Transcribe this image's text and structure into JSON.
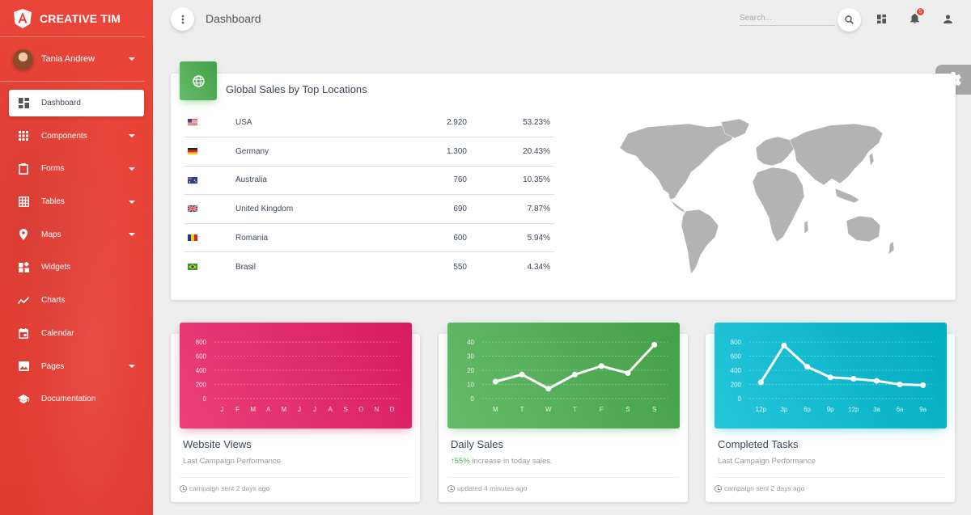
{
  "brand": {
    "name": "CREATIVE TIM"
  },
  "user": {
    "name": "Tania Andrew"
  },
  "sidebar": {
    "items": [
      {
        "label": "Dashboard"
      },
      {
        "label": "Components"
      },
      {
        "label": "Forms"
      },
      {
        "label": "Tables"
      },
      {
        "label": "Maps"
      },
      {
        "label": "Widgets"
      },
      {
        "label": "Charts"
      },
      {
        "label": "Calendar"
      },
      {
        "label": "Pages"
      },
      {
        "label": "Documentation"
      }
    ]
  },
  "header": {
    "title": "Dashboard",
    "search_placeholder": "Search...",
    "notification_count": "5"
  },
  "global_sales": {
    "title": "Global Sales by Top Locations",
    "rows": [
      {
        "country": "USA",
        "sales": "2.920",
        "percent": "53.23%"
      },
      {
        "country": "Germany",
        "sales": "1.300",
        "percent": "20.43%"
      },
      {
        "country": "Australia",
        "sales": "760",
        "percent": "10.35%"
      },
      {
        "country": "United Kingdom",
        "sales": "690",
        "percent": "7.87%"
      },
      {
        "country": "Romania",
        "sales": "600",
        "percent": "5.94%"
      },
      {
        "country": "Brasil",
        "sales": "550",
        "percent": "4.34%"
      }
    ]
  },
  "cards": [
    {
      "title": "Website Views",
      "subtitle": "Last Campaign Performance",
      "footer": "campaign sent 2 days ago"
    },
    {
      "title": "Daily Sales",
      "subtitle_highlight": "55%",
      "subtitle": " increase in today sales.",
      "footer": "updated 4 minutes ago"
    },
    {
      "title": "Completed Tasks",
      "subtitle": "Last Campaign Performance",
      "footer": "campaign sent 2 days ago"
    }
  ],
  "colors": {
    "sidebar": "#e53935",
    "green": "#4caf50",
    "pink": "#e91e63",
    "cyan": "#00bcd4"
  },
  "chart_data": [
    {
      "type": "bar",
      "title": "",
      "categories": [
        "J",
        "F",
        "M",
        "A",
        "M",
        "J",
        "J",
        "A",
        "S",
        "O",
        "N",
        "D"
      ],
      "values": [
        0,
        0,
        0,
        0,
        0,
        0,
        0,
        0,
        0,
        0,
        0,
        0
      ],
      "ylim": [
        0,
        800
      ],
      "yticks": [
        0,
        200,
        400,
        600,
        800
      ],
      "grid": true
    },
    {
      "type": "line",
      "title": "",
      "categories": [
        "M",
        "T",
        "W",
        "T",
        "F",
        "S",
        "S"
      ],
      "values": [
        12,
        17,
        7,
        17,
        23,
        18,
        38
      ],
      "ylim": [
        0,
        40
      ],
      "yticks": [
        0,
        10,
        20,
        30,
        40
      ],
      "grid": true
    },
    {
      "type": "line",
      "title": "",
      "categories": [
        "12p",
        "3p",
        "6p",
        "9p",
        "12p",
        "3a",
        "6a",
        "9a"
      ],
      "values": [
        230,
        750,
        450,
        300,
        280,
        250,
        200,
        190
      ],
      "ylim": [
        0,
        800
      ],
      "yticks": [
        0,
        200,
        400,
        600,
        800
      ],
      "grid": true
    }
  ]
}
